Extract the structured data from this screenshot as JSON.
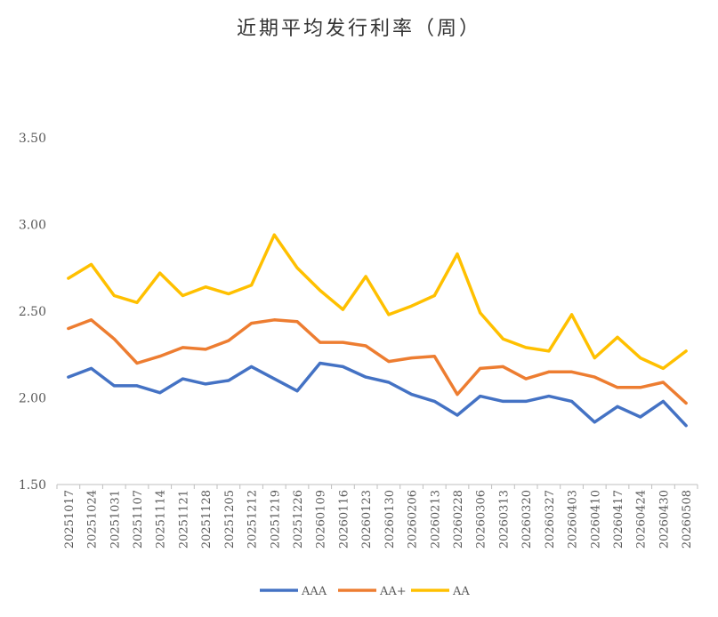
{
  "chart_data": {
    "type": "line",
    "title": "近期平均发行利率（周）",
    "xlabel": "",
    "ylabel": "",
    "ylim": [
      1.5,
      3.5
    ],
    "yticks": [
      "1.50",
      "2.00",
      "2.50",
      "3.00",
      "3.50"
    ],
    "grid": false,
    "legend_position": "bottom",
    "categories": [
      "20251017",
      "20251024",
      "20251031",
      "20251107",
      "20251114",
      "20251121",
      "20251128",
      "20251205",
      "20251212",
      "20251219",
      "20251226",
      "20260109",
      "20260116",
      "20260123",
      "20260130",
      "20260206",
      "20260213",
      "20260228",
      "20260306",
      "20260313",
      "20260320",
      "20260327",
      "20260403",
      "20260410",
      "20260417",
      "20260424",
      "20260430",
      "20260508"
    ],
    "series": [
      {
        "name": "AAA",
        "color": "#4472C4",
        "values": [
          2.12,
          2.17,
          2.07,
          2.07,
          2.03,
          2.11,
          2.08,
          2.1,
          2.18,
          2.11,
          2.04,
          2.2,
          2.18,
          2.12,
          2.09,
          2.02,
          1.98,
          1.9,
          2.01,
          1.98,
          1.98,
          2.01,
          1.98,
          1.86,
          1.95,
          1.89,
          1.98,
          1.84
        ]
      },
      {
        "name": "AA+",
        "color": "#ED7D31",
        "values": [
          2.4,
          2.45,
          2.34,
          2.2,
          2.24,
          2.29,
          2.28,
          2.33,
          2.43,
          2.45,
          2.44,
          2.32,
          2.32,
          2.3,
          2.21,
          2.23,
          2.24,
          2.02,
          2.17,
          2.18,
          2.11,
          2.15,
          2.15,
          2.12,
          2.06,
          2.06,
          2.09,
          1.97
        ]
      },
      {
        "name": "AA",
        "color": "#FFC000",
        "values": [
          2.69,
          2.77,
          2.59,
          2.55,
          2.72,
          2.59,
          2.64,
          2.6,
          2.65,
          2.94,
          2.75,
          2.62,
          2.51,
          2.7,
          2.48,
          2.53,
          2.59,
          2.83,
          2.49,
          2.34,
          2.29,
          2.27,
          2.48,
          2.23,
          2.35,
          2.23,
          2.17,
          2.27
        ]
      }
    ]
  }
}
